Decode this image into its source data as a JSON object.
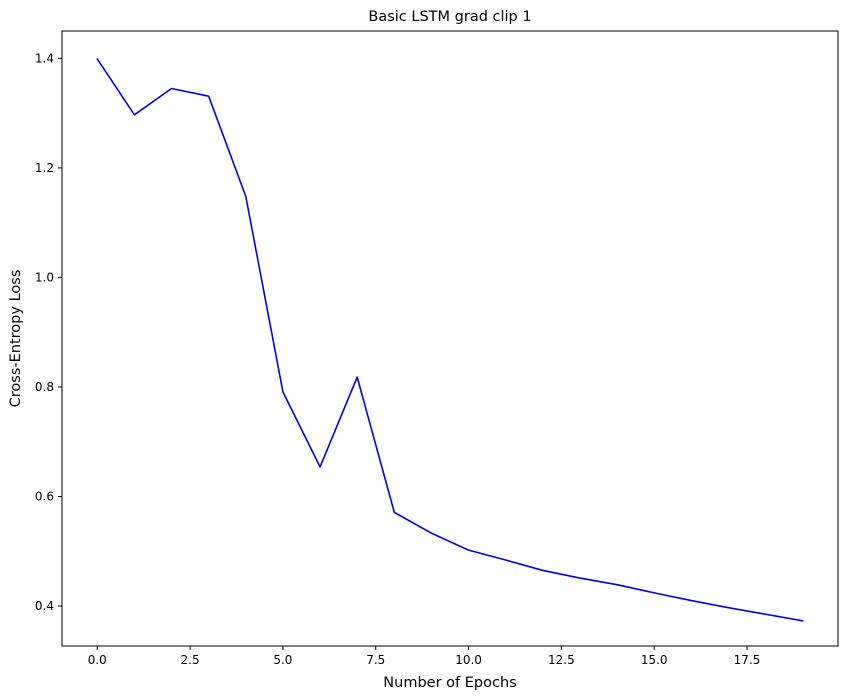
{
  "chart_data": {
    "type": "line",
    "title": "Basic LSTM grad clip 1",
    "xlabel": "Number of Epochs",
    "ylabel": "Cross-Entropy Loss",
    "xlim": [
      -0.95,
      19.95
    ],
    "ylim": [
      0.327,
      1.45
    ],
    "x_ticks": [
      0.0,
      2.5,
      5.0,
      7.5,
      10.0,
      12.5,
      15.0,
      17.5
    ],
    "x_tick_labels": [
      "0.0",
      "2.5",
      "5.0",
      "7.5",
      "10.0",
      "12.5",
      "15.0",
      "17.5"
    ],
    "y_ticks": [
      0.4,
      0.6,
      0.8,
      1.0,
      1.2,
      1.4
    ],
    "y_tick_labels": [
      "0.4",
      "0.6",
      "0.8",
      "1.0",
      "1.2",
      "1.4"
    ],
    "grid": false,
    "legend": "none",
    "series": [
      {
        "color": "#0000ee",
        "x": [
          0,
          1,
          2,
          3,
          4,
          5,
          6,
          7,
          8,
          9,
          10,
          11,
          12,
          13,
          14,
          15,
          16,
          17,
          18,
          19
        ],
        "y": [
          1.399,
          1.297,
          1.345,
          1.331,
          1.148,
          0.791,
          0.654,
          0.818,
          0.571,
          0.533,
          0.502,
          0.484,
          0.465,
          0.451,
          0.439,
          0.424,
          0.41,
          0.397,
          0.385,
          0.373
        ]
      }
    ]
  }
}
